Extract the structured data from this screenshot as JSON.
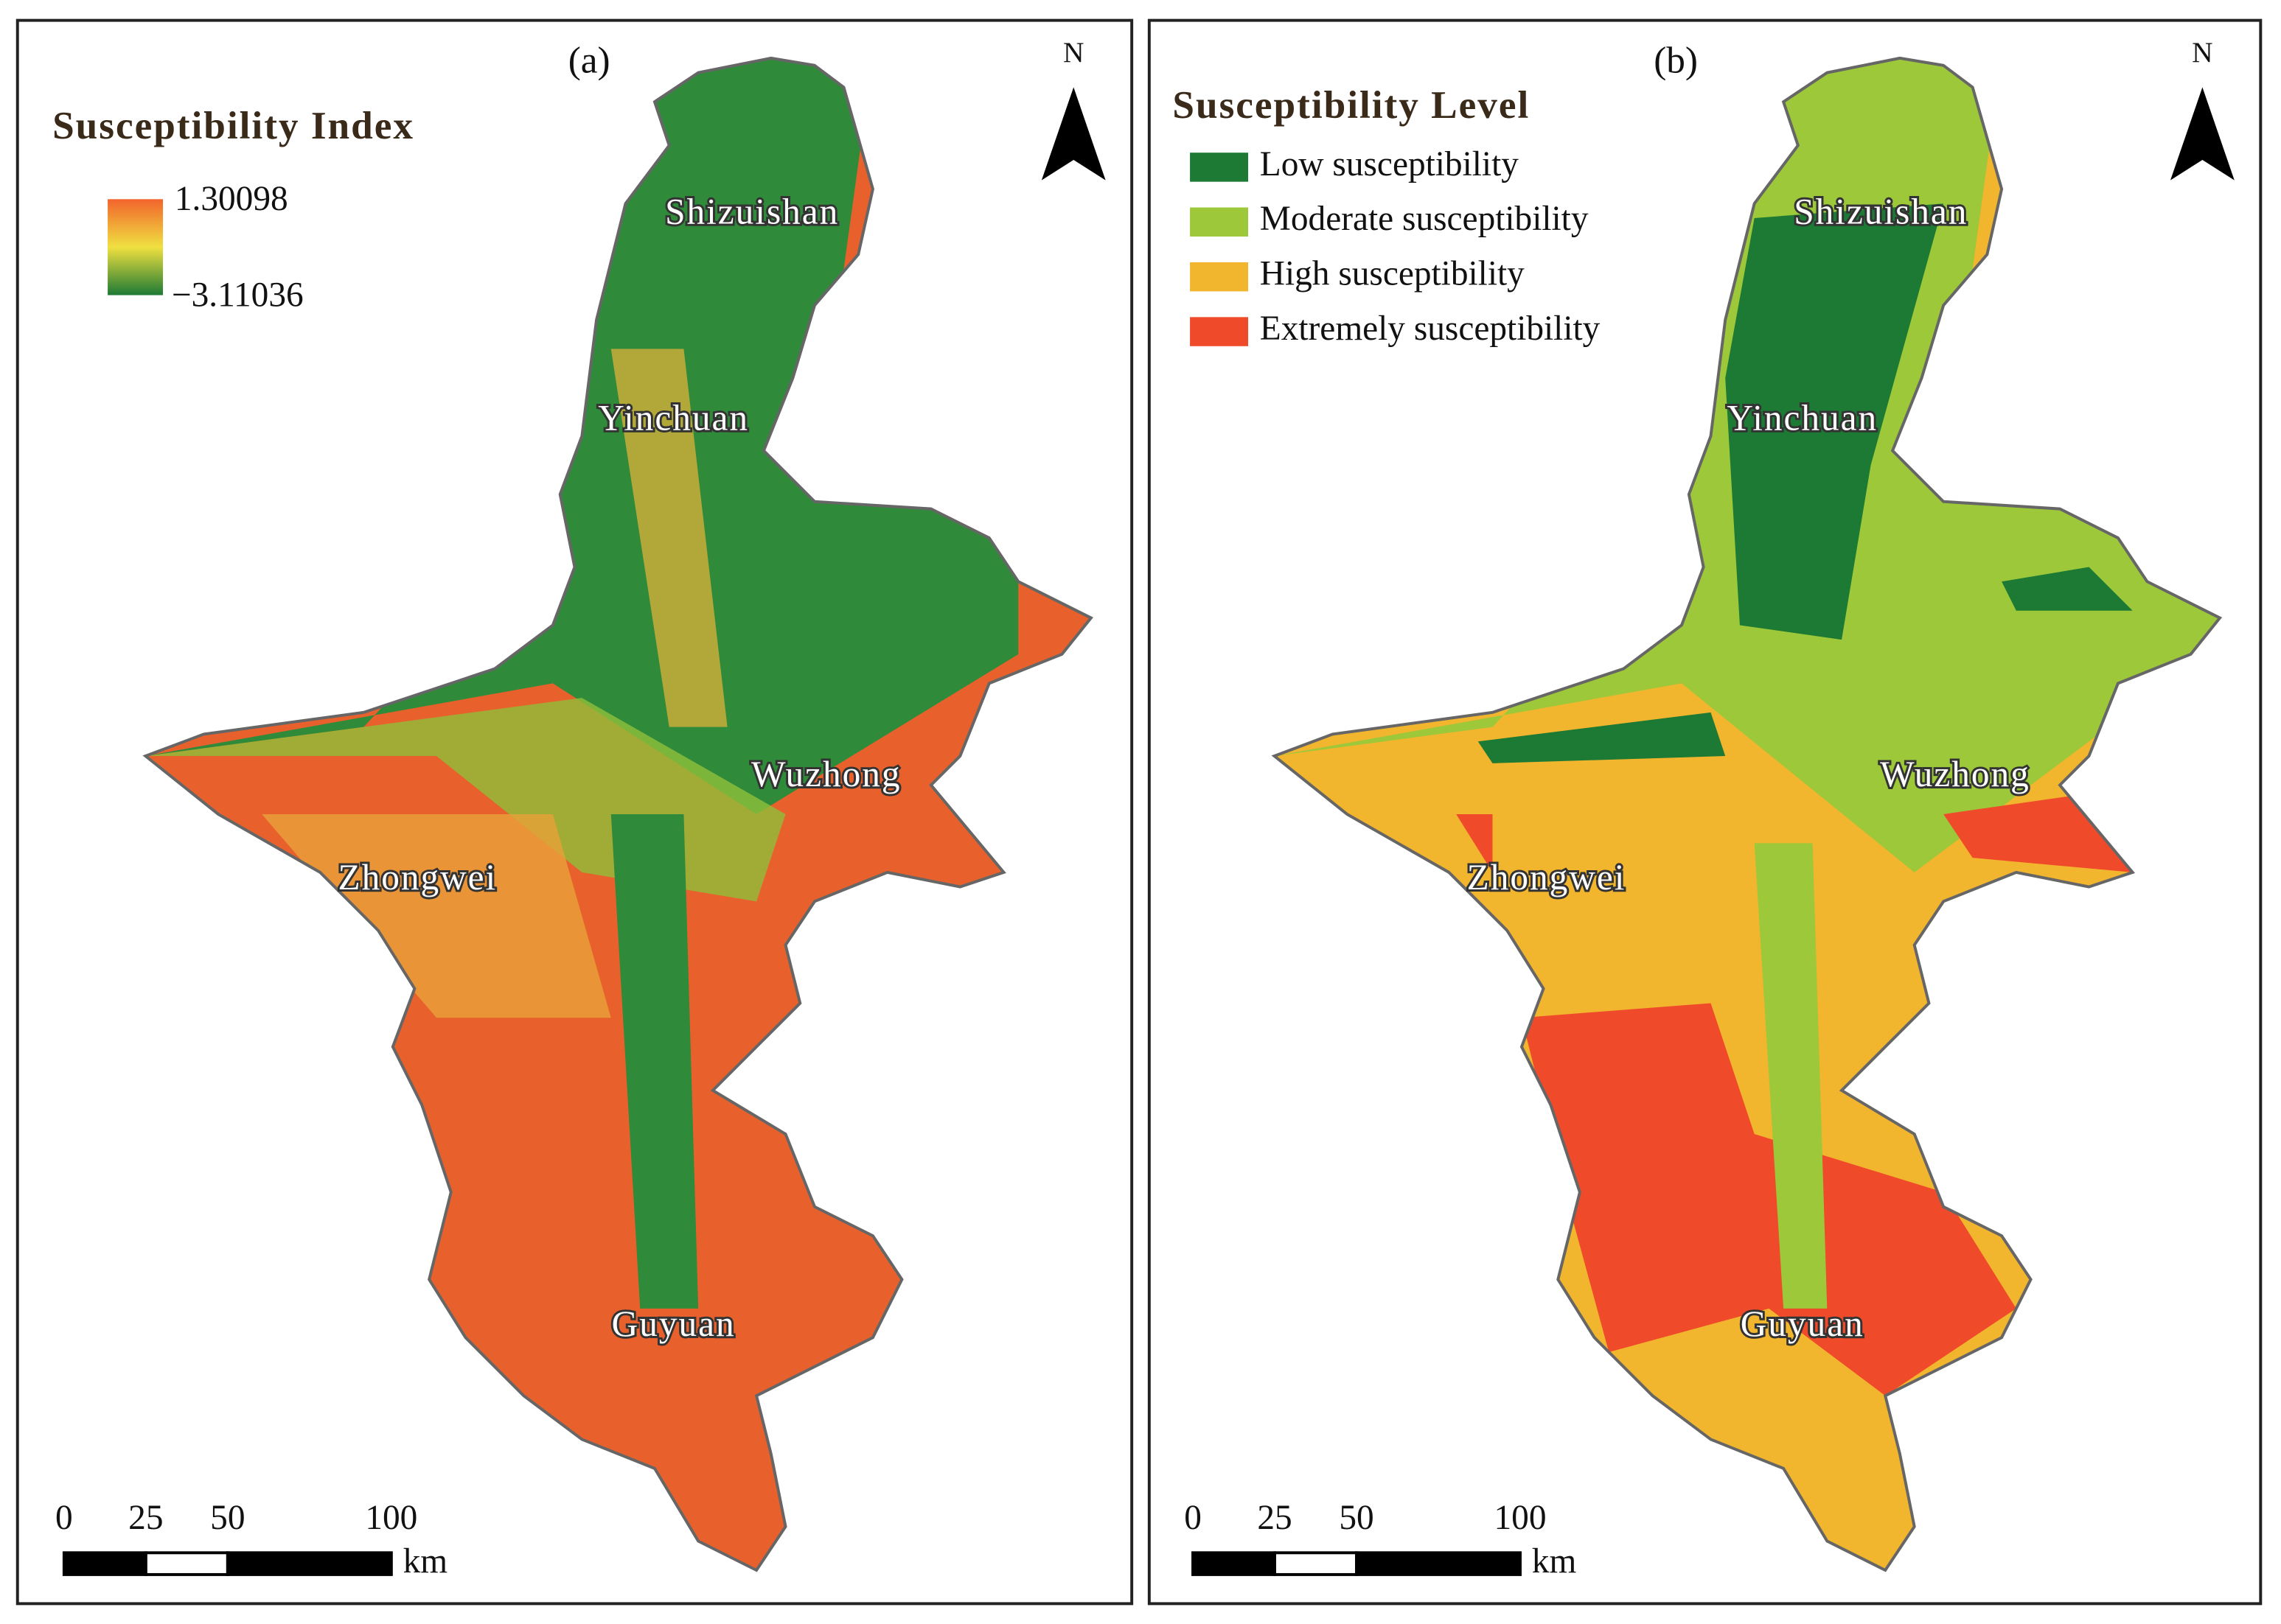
{
  "panels": [
    {
      "label": "(a)",
      "north": "N",
      "legend": {
        "title": "Susceptibility Index",
        "max": "1.30098",
        "min": "−3.11036"
      },
      "cities": [
        "Shizuishan",
        "Yinchuan",
        "Wuzhong",
        "Zhongwei",
        "Guyuan"
      ],
      "scale": {
        "ticks": [
          0,
          25,
          50,
          100
        ],
        "unit": "km"
      }
    },
    {
      "label": "(b)",
      "north": "N",
      "legend": {
        "title": "Susceptibility Level",
        "items": [
          {
            "label": "Low susceptibility",
            "color": "#1d7a34"
          },
          {
            "label": "Moderate susceptibility",
            "color": "#9cc83a"
          },
          {
            "label": "High susceptibility",
            "color": "#f2b52e"
          },
          {
            "label": "Extremely susceptibility",
            "color": "#ef4a2a"
          }
        ]
      },
      "cities": [
        "Shizuishan",
        "Yinchuan",
        "Wuzhong",
        "Zhongwei",
        "Guyuan"
      ],
      "scale": {
        "ticks": [
          0,
          25,
          50,
          100
        ],
        "unit": "km"
      }
    }
  ]
}
